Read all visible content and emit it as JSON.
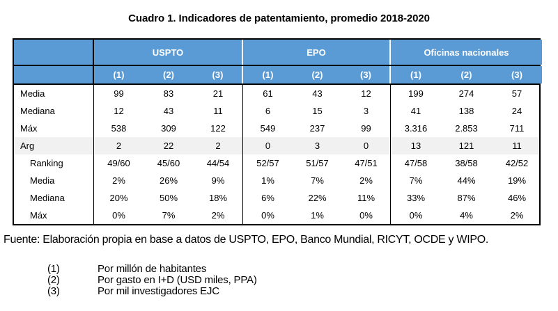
{
  "title": "Cuadro 1. Indicadores de patentamiento, promedio 2018-2020",
  "table": {
    "groups": [
      {
        "label": "USPTO"
      },
      {
        "label": "EPO"
      },
      {
        "label": "Oficinas nacionales"
      }
    ],
    "subheaders": [
      "(1)",
      "(2)",
      "(3)",
      "(1)",
      "(2)",
      "(3)",
      "(1)",
      "(2)",
      "(3)"
    ],
    "rows": [
      {
        "label": "Media",
        "values": [
          "99",
          "83",
          "21",
          "61",
          "43",
          "12",
          "199",
          "274",
          "57"
        ]
      },
      {
        "label": "Mediana",
        "values": [
          "12",
          "43",
          "11",
          "6",
          "15",
          "3",
          "41",
          "138",
          "24"
        ]
      },
      {
        "label": "Máx",
        "values": [
          "538",
          "309",
          "122",
          "549",
          "237",
          "99",
          "3.316",
          "2.853",
          "711"
        ]
      },
      {
        "label": "Arg",
        "values": [
          "2",
          "22",
          "2",
          "0",
          "3",
          "0",
          "13",
          "121",
          "11"
        ]
      },
      {
        "label": "Ranking",
        "values": [
          "49/60",
          "45/60",
          "44/54",
          "52/57",
          "51/57",
          "47/51",
          "47/58",
          "38/58",
          "42/52"
        ]
      },
      {
        "label": "Media",
        "values": [
          "2%",
          "26%",
          "9%",
          "1%",
          "7%",
          "2%",
          "7%",
          "44%",
          "19%"
        ]
      },
      {
        "label": "Mediana",
        "values": [
          "20%",
          "50%",
          "18%",
          "6%",
          "22%",
          "11%",
          "33%",
          "87%",
          "46%"
        ]
      },
      {
        "label": "Máx",
        "values": [
          "0%",
          "7%",
          "2%",
          "0%",
          "1%",
          "0%",
          "0%",
          "4%",
          "2%"
        ]
      }
    ]
  },
  "source": "Fuente: Elaboración propia en base a datos de USPTO, EPO, Banco Mundial, RICYT, OCDE y WIPO.",
  "notes": [
    {
      "num": "(1)",
      "text": "Por millón de habitantes"
    },
    {
      "num": "(2)",
      "text": "Por gasto en I+D (USD miles, PPA)"
    },
    {
      "num": "(3)",
      "text": "Por mil investigadores EJC"
    }
  ],
  "colors": {
    "header_blue": "#5B9BD5",
    "header_text": "#FFFFFF",
    "highlight_gray": "#F1F1F1",
    "border": "#000000"
  }
}
